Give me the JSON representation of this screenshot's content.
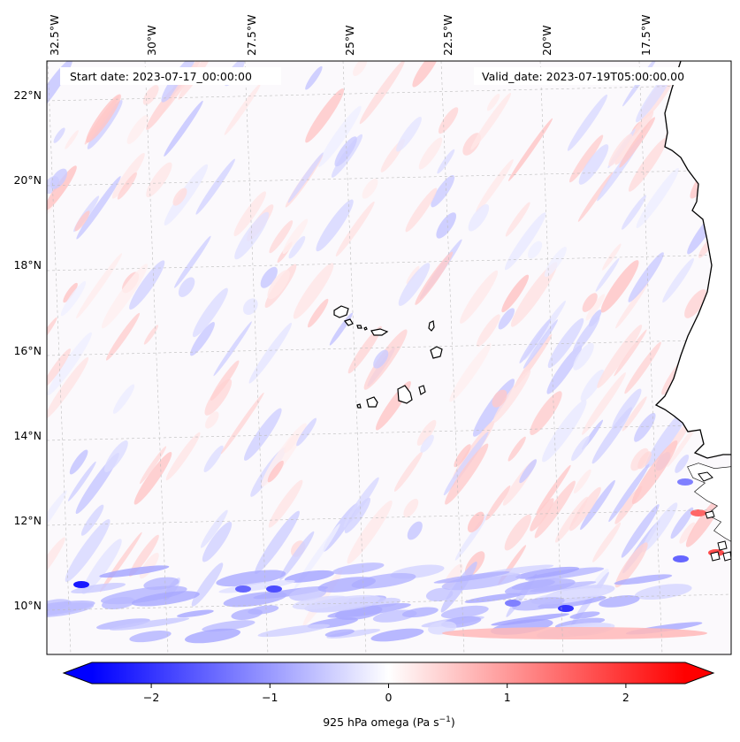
{
  "header": {
    "start_date": "Start date: 2023-07-17_00:00:00",
    "valid_date": "Valid_date: 2023-07-19T05:00:00.00"
  },
  "longitude_labels": [
    "32.5°W",
    "30°W",
    "27.5°W",
    "25°W",
    "22.5°W",
    "20°W",
    "17.5°W"
  ],
  "latitude_labels": [
    "22°N",
    "20°N",
    "18°N",
    "16°N",
    "14°N",
    "12°N",
    "10°N"
  ],
  "colorbar": {
    "ticks": [
      "−2",
      "−1",
      "0",
      "1",
      "2"
    ],
    "tick_values": [
      -2,
      -1,
      0,
      1,
      2
    ],
    "range": [
      -2.5,
      2.5
    ],
    "label_main": "925 hPa omega (Pa s",
    "label_exp": "−1",
    "label_close": ")",
    "colormap": "bwr",
    "low_color": "#0000ff",
    "mid_color": "#ffffff",
    "high_color": "#ff0000",
    "extend": "both"
  },
  "map": {
    "gridlines": "dashed",
    "coastline_color": "#000000"
  }
}
